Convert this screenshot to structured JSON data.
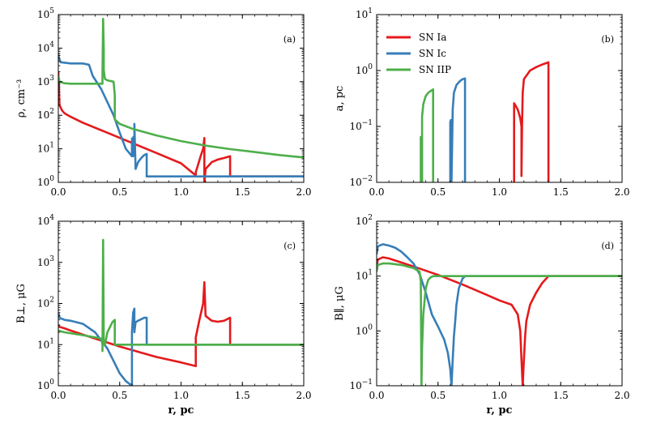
{
  "colors": {
    "SN Ia": "#e41a1c",
    "SN Ic": "#377eb8",
    "SN IIP": "#4daf4a"
  },
  "legend": {
    "placement": "upper-left",
    "panel": "b",
    "entries": [
      "SN Ia",
      "SN Ic",
      "SN IIP"
    ]
  },
  "chart_data": [
    {
      "type": "line",
      "panel_tag": "(a)",
      "xlabel": "",
      "ylabel": "ρ, cm⁻³",
      "xlim": [
        0.0,
        2.0
      ],
      "ylim": [
        1,
        100000
      ],
      "yscale": "log",
      "xticks": [
        "0.0",
        "0.5",
        "1.0",
        "1.5",
        "2.0"
      ],
      "yticks": [
        {
          "v": 1,
          "e": "0"
        },
        {
          "v": 10,
          "e": "1"
        },
        {
          "v": 100,
          "e": "2"
        },
        {
          "v": 1000,
          "e": "3"
        },
        {
          "v": 10000,
          "e": "4"
        },
        {
          "v": 100000,
          "e": "5"
        }
      ],
      "series": [
        {
          "name": "SN Ia",
          "x": [
            0.0,
            0.005,
            0.01,
            0.03,
            0.05,
            0.1,
            0.2,
            0.4,
            0.6,
            0.8,
            1.0,
            1.12,
            1.12,
            1.16,
            1.18,
            1.19,
            1.19,
            1.2,
            1.25,
            1.3,
            1.35,
            1.4,
            1.4,
            2.0
          ],
          "y": [
            2000,
            600,
            200,
            140,
            115,
            90,
            60,
            30,
            15,
            7.5,
            3.7,
            1.6,
            2,
            6,
            10,
            21,
            1,
            2.5,
            4,
            4.8,
            5.3,
            6,
            1.5,
            1.5
          ]
        },
        {
          "name": "SN Ic",
          "x": [
            0.0,
            0.005,
            0.02,
            0.1,
            0.2,
            0.25,
            0.28,
            0.35,
            0.45,
            0.5,
            0.55,
            0.6,
            0.6,
            0.61,
            0.61,
            0.62,
            0.62,
            0.63,
            0.65,
            0.66,
            0.67,
            0.68,
            0.69,
            0.7,
            0.72,
            0.72,
            2.0
          ],
          "y": [
            7000,
            5000,
            3800,
            3500,
            3500,
            3200,
            1500,
            600,
            100,
            30,
            10,
            6,
            20,
            6,
            22,
            15,
            55,
            2.5,
            4,
            4.5,
            5,
            5.5,
            6,
            6.5,
            7,
            1.5,
            1.5
          ]
        },
        {
          "name": "SN IIP",
          "x": [
            0.0,
            0.01,
            0.05,
            0.1,
            0.2,
            0.3,
            0.35,
            0.36,
            0.36,
            0.365,
            0.37,
            0.37,
            0.38,
            0.4,
            0.45,
            0.46,
            0.46,
            0.5,
            0.6,
            0.8,
            1.0,
            1.2,
            1.4,
            1.6,
            1.8,
            2.0
          ],
          "y": [
            1500,
            1000,
            900,
            870,
            870,
            870,
            870,
            870,
            1500,
            75000,
            9000,
            2200,
            1200,
            1100,
            1000,
            400,
            75,
            55,
            40,
            25,
            17,
            12.5,
            9.8,
            8,
            6.5,
            5.5
          ]
        }
      ]
    },
    {
      "type": "line",
      "panel_tag": "(b)",
      "xlabel": "",
      "ylabel": "a, pc",
      "xlim": [
        0.0,
        2.0
      ],
      "ylim": [
        0.01,
        10
      ],
      "yscale": "log",
      "xticks": [
        "0.0",
        "0.5",
        "1.0",
        "1.5",
        "2.0"
      ],
      "yticks": [
        {
          "v": 0.01,
          "e": "−2"
        },
        {
          "v": 0.1,
          "e": "−1"
        },
        {
          "v": 1,
          "e": "0"
        },
        {
          "v": 10,
          "e": "1"
        }
      ],
      "series": [
        {
          "name": "SN Ia",
          "x": [
            1.12,
            1.12,
            1.13,
            1.15,
            1.16,
            1.17,
            1.18,
            1.18,
            1.185,
            1.19,
            1.2,
            1.25,
            1.3,
            1.35,
            1.4,
            1.4
          ],
          "y": [
            0.01,
            0.26,
            0.24,
            0.2,
            0.17,
            0.14,
            0.1,
            0.013,
            0.1,
            0.4,
            0.7,
            1.0,
            1.15,
            1.28,
            1.4,
            0.01
          ]
        },
        {
          "name": "SN Ic",
          "x": [
            0.6,
            0.6,
            0.605,
            0.61,
            0.61,
            0.62,
            0.63,
            0.65,
            0.68,
            0.7,
            0.72,
            0.72
          ],
          "y": [
            0.01,
            0.12,
            0.13,
            0.12,
            0.01,
            0.2,
            0.4,
            0.55,
            0.65,
            0.7,
            0.72,
            0.01
          ]
        },
        {
          "name": "SN IIP",
          "x": [
            0.36,
            0.36,
            0.365,
            0.37,
            0.37,
            0.38,
            0.4,
            0.42,
            0.44,
            0.46,
            0.46
          ],
          "y": [
            0.01,
            0.065,
            0.03,
            0.01,
            0.15,
            0.25,
            0.35,
            0.4,
            0.43,
            0.46,
            0.01
          ]
        }
      ]
    },
    {
      "type": "line",
      "panel_tag": "(c)",
      "xlabel": "r, pc",
      "ylabel": "B⊥, μG",
      "xlim": [
        0.0,
        2.0
      ],
      "ylim": [
        1,
        10000
      ],
      "yscale": "log",
      "xticks": [
        "0.0",
        "0.5",
        "1.0",
        "1.5",
        "2.0"
      ],
      "yticks": [
        {
          "v": 1,
          "e": "0"
        },
        {
          "v": 10,
          "e": "1"
        },
        {
          "v": 100,
          "e": "2"
        },
        {
          "v": 1000,
          "e": "3"
        },
        {
          "v": 10000,
          "e": "4"
        }
      ],
      "series": [
        {
          "name": "SN Ia",
          "x": [
            0.0,
            0.01,
            0.05,
            0.1,
            0.3,
            0.5,
            0.8,
            1.0,
            1.12,
            1.12,
            1.15,
            1.18,
            1.19,
            1.2,
            1.25,
            1.3,
            1.35,
            1.4,
            1.4,
            2.0
          ],
          "y": [
            30,
            27,
            25,
            22,
            14,
            9,
            5,
            3.7,
            3,
            15,
            40,
            100,
            330,
            50,
            38,
            36,
            38,
            45,
            10,
            10
          ]
        },
        {
          "name": "SN Ic",
          "x": [
            0.0,
            0.01,
            0.05,
            0.1,
            0.2,
            0.3,
            0.4,
            0.45,
            0.5,
            0.55,
            0.6,
            0.6,
            0.61,
            0.62,
            0.62,
            0.63,
            0.65,
            0.68,
            0.7,
            0.72,
            0.72,
            2.0
          ],
          "y": [
            60,
            45,
            40,
            38,
            32,
            20,
            8,
            4,
            2,
            1.3,
            1,
            20,
            60,
            75,
            20,
            35,
            38,
            42,
            45,
            45,
            10,
            10
          ]
        },
        {
          "name": "SN IIP",
          "x": [
            0.0,
            0.05,
            0.2,
            0.3,
            0.35,
            0.36,
            0.36,
            0.365,
            0.37,
            0.37,
            0.38,
            0.4,
            0.44,
            0.46,
            0.46,
            2.0
          ],
          "y": [
            22,
            20,
            17,
            15,
            14,
            10,
            7,
            3500,
            12,
            10,
            10,
            20,
            35,
            40,
            10,
            10
          ]
        }
      ]
    },
    {
      "type": "line",
      "panel_tag": "(d)",
      "xlabel": "r, pc",
      "ylabel": "B∥, μG",
      "xlim": [
        0.0,
        2.0
      ],
      "ylim": [
        0.1,
        100
      ],
      "yscale": "log",
      "xticks": [
        "0.0",
        "0.5",
        "1.0",
        "1.5",
        "2.0"
      ],
      "yticks": [
        {
          "v": 0.1,
          "e": "−1"
        },
        {
          "v": 1,
          "e": "0"
        },
        {
          "v": 10,
          "e": "1"
        },
        {
          "v": 100,
          "e": "2"
        }
      ],
      "series": [
        {
          "name": "SN Ia",
          "x": [
            0.0,
            0.01,
            0.05,
            0.1,
            0.3,
            0.5,
            0.7,
            0.9,
            1.0,
            1.1,
            1.15,
            1.17,
            1.18,
            1.19,
            1.2,
            1.21,
            1.22,
            1.25,
            1.3,
            1.35,
            1.4,
            2.0
          ],
          "y": [
            15,
            20,
            22,
            21,
            15,
            10.5,
            7,
            4.5,
            3.6,
            3,
            2,
            1,
            0.3,
            0.1,
            0.3,
            0.8,
            1.5,
            3,
            5,
            7.5,
            10,
            10
          ]
        },
        {
          "name": "SN Ic",
          "x": [
            0.0,
            0.01,
            0.05,
            0.1,
            0.15,
            0.2,
            0.25,
            0.3,
            0.35,
            0.4,
            0.45,
            0.5,
            0.55,
            0.58,
            0.6,
            0.61,
            0.62,
            0.63,
            0.64,
            0.65,
            0.67,
            0.7,
            0.72,
            2.0
          ],
          "y": [
            25,
            35,
            38,
            36,
            33,
            28,
            22,
            17,
            11,
            5,
            2,
            1.2,
            0.7,
            0.4,
            0.2,
            0.1,
            0.3,
            0.8,
            1.5,
            3,
            6,
            9,
            10,
            10
          ]
        },
        {
          "name": "SN IIP",
          "x": [
            0.0,
            0.01,
            0.05,
            0.1,
            0.2,
            0.3,
            0.35,
            0.36,
            0.365,
            0.37,
            0.38,
            0.4,
            0.42,
            0.44,
            0.46,
            2.0
          ],
          "y": [
            12,
            16,
            17,
            17,
            16,
            14,
            12,
            8,
            0.1,
            0.5,
            2,
            6,
            8.5,
            9.5,
            10,
            10
          ]
        }
      ]
    }
  ]
}
